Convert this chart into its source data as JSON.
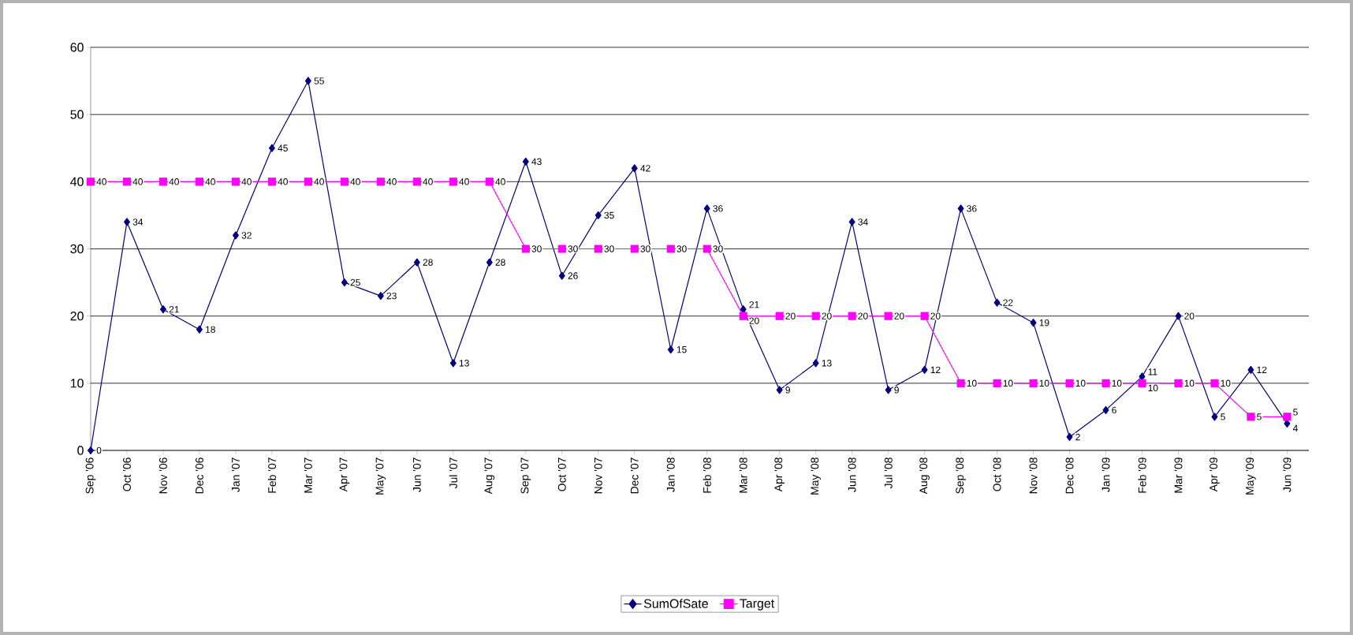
{
  "chart_data": {
    "type": "line",
    "categories": [
      "Sep '06",
      "Oct '06",
      "Nov '06",
      "Dec '06",
      "Jan '07",
      "Feb '07",
      "Mar '07",
      "Apr '07",
      "May '07",
      "Jun '07",
      "Jul '07",
      "Aug '07",
      "Sep '07",
      "Oct '07",
      "Nov '07",
      "Dec '07",
      "Jan '08",
      "Feb '08",
      "Mar '08",
      "Apr '08",
      "May '08",
      "Jun '08",
      "Jul '08",
      "Aug '08",
      "Sep '08",
      "Oct '08",
      "Nov '08",
      "Dec '08",
      "Jan '09",
      "Feb '09",
      "Mar '09",
      "Apr '09",
      "May '09",
      "Jun '09"
    ],
    "series": [
      {
        "name": "SumOfSate",
        "color": "#000080",
        "marker": "diamond",
        "values": [
          0,
          34,
          21,
          18,
          32,
          45,
          55,
          25,
          23,
          28,
          13,
          28,
          43,
          26,
          35,
          42,
          15,
          36,
          21,
          9,
          13,
          34,
          9,
          12,
          36,
          22,
          19,
          2,
          6,
          11,
          20,
          5,
          12,
          4
        ]
      },
      {
        "name": "Target",
        "color": "#ff00ff",
        "marker": "square",
        "values": [
          40,
          40,
          40,
          40,
          40,
          40,
          40,
          40,
          40,
          40,
          40,
          40,
          30,
          30,
          30,
          30,
          30,
          30,
          20,
          20,
          20,
          20,
          20,
          20,
          10,
          10,
          10,
          10,
          10,
          10,
          10,
          10,
          5,
          5
        ]
      }
    ],
    "ylim": [
      0,
      60
    ],
    "yticks": [
      0,
      10,
      20,
      30,
      40,
      50,
      60
    ],
    "grid": "y",
    "legend": "bottom",
    "data_labels": true,
    "line_style": "solid"
  }
}
